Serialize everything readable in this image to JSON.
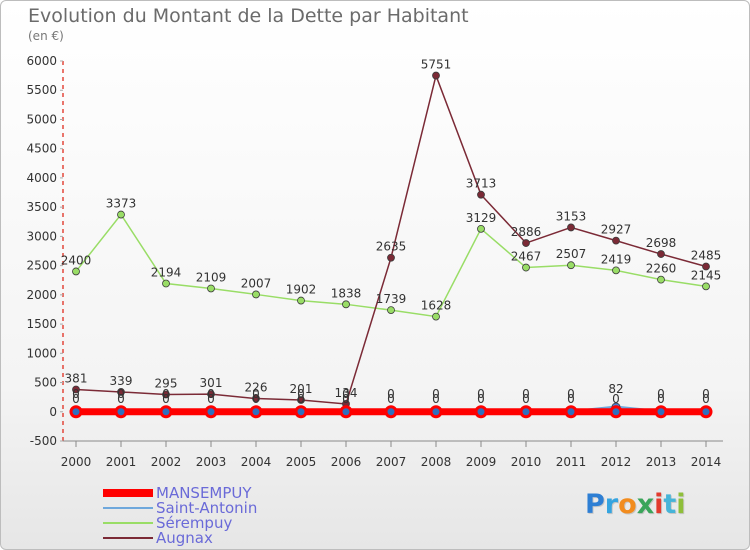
{
  "title": "Evolution du Montant de la Dette par Habitant",
  "subtitle": "(en €)",
  "logo": {
    "text": "Proxiti",
    "colors": [
      "#2e7fd4",
      "#35a4e0",
      "#f28c1e",
      "#3aa55a",
      "#e23b2e",
      "#46b4d8",
      "#8fbf3a"
    ]
  },
  "chart_data": {
    "type": "line",
    "x": [
      "2000",
      "2001",
      "2002",
      "2003",
      "2004",
      "2005",
      "2006",
      "2007",
      "2008",
      "2009",
      "2010",
      "2011",
      "2012",
      "2013",
      "2014"
    ],
    "ylim": [
      -500,
      6000
    ],
    "yticks": [
      -500,
      0,
      500,
      1000,
      1500,
      2000,
      2500,
      3000,
      3500,
      4000,
      4500,
      5000,
      5500,
      6000
    ],
    "grid": false,
    "legend_position": "bottom-left",
    "series": [
      {
        "name": "MANSEMPUY",
        "color": "#ff0000",
        "values": [
          0,
          0,
          0,
          0,
          0,
          0,
          0,
          0,
          0,
          0,
          0,
          0,
          0,
          0,
          0
        ]
      },
      {
        "name": "Saint-Antonin",
        "color": "#6fa8dc",
        "values": [
          0,
          0,
          0,
          0,
          0,
          0,
          0,
          0,
          0,
          0,
          0,
          0,
          82,
          0,
          0
        ]
      },
      {
        "name": "Sérempuy",
        "color": "#99dd66",
        "values": [
          2400,
          3373,
          2194,
          2109,
          2007,
          1902,
          1838,
          1739,
          1628,
          3129,
          2467,
          2507,
          2419,
          2260,
          2145
        ]
      },
      {
        "name": "Augnax",
        "color": "#7b2a36",
        "values": [
          381,
          339,
          295,
          301,
          226,
          201,
          134,
          2635,
          5751,
          3713,
          2886,
          3153,
          2927,
          2698,
          2485
        ]
      }
    ]
  }
}
